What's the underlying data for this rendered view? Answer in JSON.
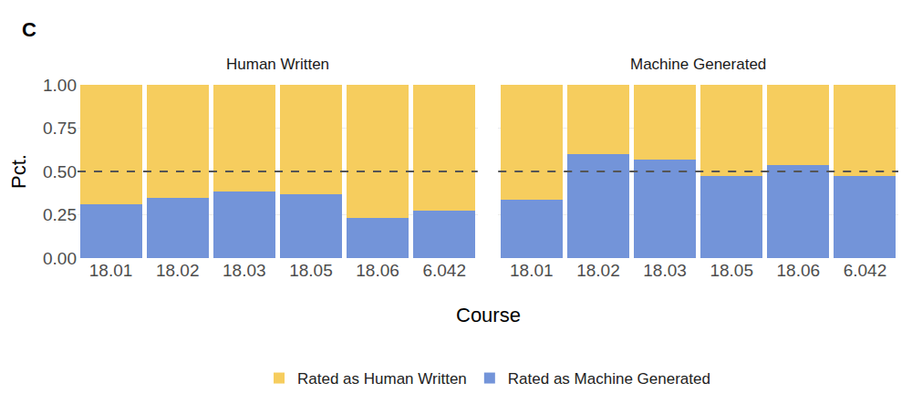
{
  "panel_label": "C",
  "x_label": "Course",
  "y_label": "Pct.",
  "legend": "bottom",
  "chart_data": [
    {
      "type": "bar",
      "stacked": true,
      "grid": true,
      "title": "Human Written",
      "categories": [
        "18.01",
        "18.02",
        "18.03",
        "18.05",
        "18.06",
        "6.042"
      ],
      "series": [
        {
          "name": "Rated as Machine Generated",
          "color": "#7394d9",
          "values": [
            0.31,
            0.35,
            0.385,
            0.37,
            0.23,
            0.275
          ]
        },
        {
          "name": "Rated as Human Written",
          "color": "#f6cd5e",
          "values": [
            0.69,
            0.65,
            0.615,
            0.63,
            0.77,
            0.725
          ]
        }
      ],
      "ylim": [
        0,
        1
      ],
      "yticks": [
        {
          "value": 0,
          "label": "0.00"
        },
        {
          "value": 0.25,
          "label": "0.25"
        },
        {
          "value": 0.5,
          "label": "0.50"
        },
        {
          "value": 0.75,
          "label": "0.75"
        },
        {
          "value": 1,
          "label": "1.00"
        }
      ],
      "reference_line": 0.5
    },
    {
      "type": "bar",
      "stacked": true,
      "grid": true,
      "title": "Machine Generated",
      "categories": [
        "18.01",
        "18.02",
        "18.03",
        "18.05",
        "18.06",
        "6.042"
      ],
      "series": [
        {
          "name": "Rated as Machine Generated",
          "color": "#7394d9",
          "values": [
            0.335,
            0.6,
            0.57,
            0.475,
            0.535,
            0.475
          ]
        },
        {
          "name": "Rated as Human Written",
          "color": "#f6cd5e",
          "values": [
            0.665,
            0.4,
            0.43,
            0.525,
            0.465,
            0.525
          ]
        }
      ],
      "ylim": [
        0,
        1
      ],
      "yticks": [
        {
          "value": 0,
          "label": "0.00"
        },
        {
          "value": 0.25,
          "label": "0.25"
        },
        {
          "value": 0.5,
          "label": "0.50"
        },
        {
          "value": 0.75,
          "label": "0.75"
        },
        {
          "value": 1,
          "label": "1.00"
        }
      ],
      "reference_line": 0.5
    }
  ]
}
